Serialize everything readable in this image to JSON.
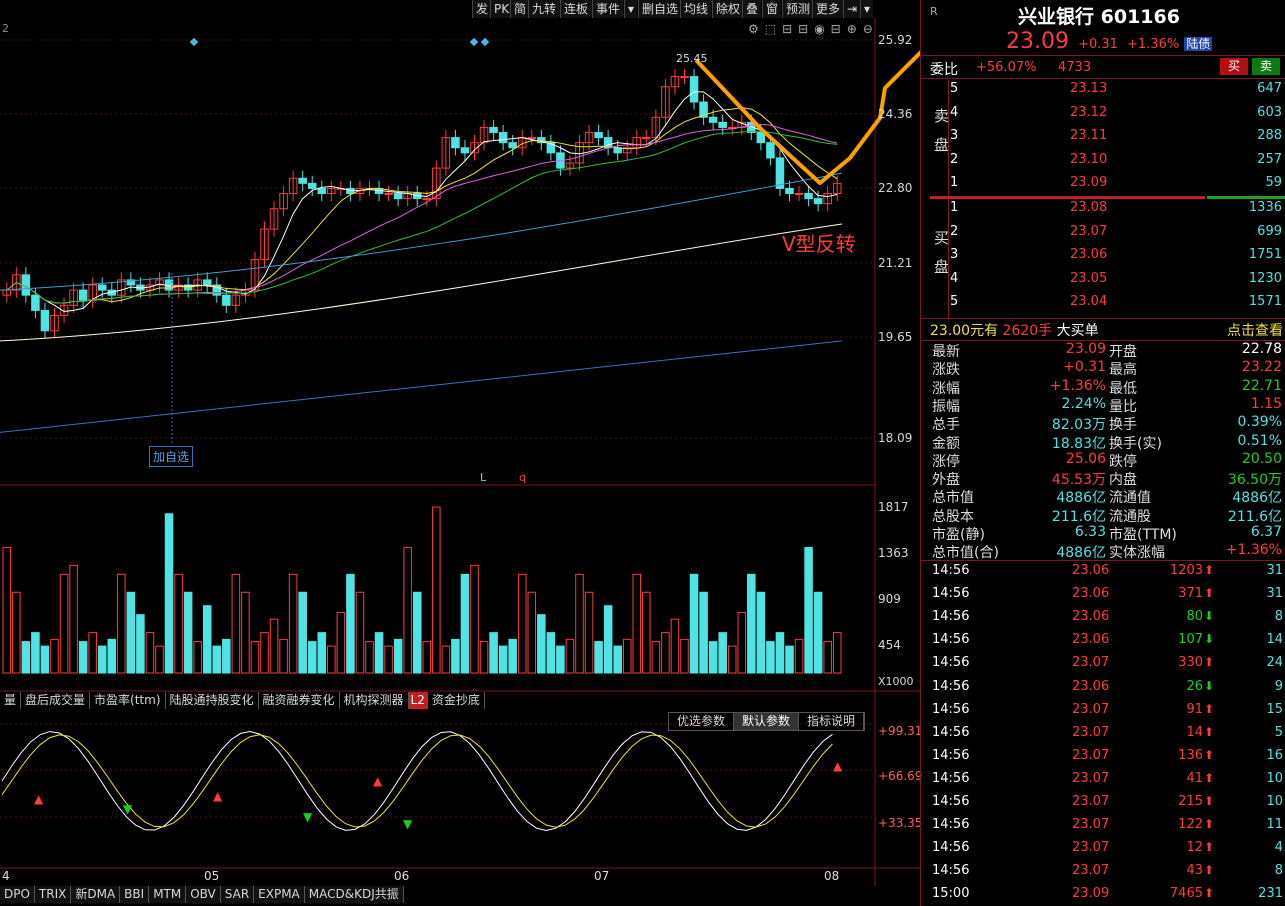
{
  "toolbar": [
    "发",
    "PK",
    "简",
    "九转",
    "连板",
    "事件",
    "▾",
    "删自选",
    "均线",
    "除权",
    "叠",
    "窗",
    "预测",
    "更多",
    "⇥",
    "▾"
  ],
  "chart": {
    "period_label": "2",
    "price_labels": [
      "25.92",
      "24.36",
      "22.80",
      "21.21",
      "19.65",
      "18.09"
    ],
    "high_marker": "25.45",
    "annotation": "V型反转",
    "add_fav": "加自选",
    "markers": [
      "L",
      "q"
    ]
  },
  "volume": {
    "labels": [
      "1817",
      "1363",
      "909",
      "454"
    ],
    "unit": "X1000"
  },
  "indicator_tabs": [
    "量",
    "盘后成交量",
    "市盈率(ttm)",
    "陆股通持股变化",
    "融资融券变化",
    "机构探测器",
    "L2",
    "资金抄底"
  ],
  "param_tabs": [
    "优选参数",
    "默认参数",
    "指标说明"
  ],
  "osc": {
    "labels": [
      "+99.31",
      "+66.69",
      "+33.35"
    ]
  },
  "months": [
    "4",
    "05",
    "06",
    "07",
    "08"
  ],
  "bottom_tabs": [
    "DPO",
    "TRIX",
    "新DMA",
    "BBI",
    "MTM",
    "OBV",
    "SAR",
    "EXPMA",
    "MACD&KDJ共振"
  ],
  "quote": {
    "name": "兴业银行",
    "code": "601166",
    "price": "23.09",
    "change": "+0.31",
    "pct": "+1.36%",
    "tag": "陆债",
    "wb_label": "委比",
    "wb_pct": "+56.07%",
    "wb_val": "4733",
    "buy": "买",
    "sell": "卖",
    "sell_side": "卖盘",
    "buy_side": "买盘",
    "asks": [
      {
        "n": "5",
        "p": "23.13",
        "v": "647"
      },
      {
        "n": "4",
        "p": "23.12",
        "v": "603"
      },
      {
        "n": "3",
        "p": "23.11",
        "v": "288"
      },
      {
        "n": "2",
        "p": "23.10",
        "v": "257"
      },
      {
        "n": "1",
        "p": "23.09",
        "v": "59"
      }
    ],
    "bids": [
      {
        "n": "1",
        "p": "23.08",
        "v": "1336"
      },
      {
        "n": "2",
        "p": "23.07",
        "v": "699"
      },
      {
        "n": "3",
        "p": "23.06",
        "v": "1751"
      },
      {
        "n": "4",
        "p": "23.05",
        "v": "1230"
      },
      {
        "n": "5",
        "p": "23.04",
        "v": "1571"
      }
    ],
    "bigorder": {
      "price": "23.00元有",
      "qty": "2620手",
      "label": "大买单",
      "link": "点击查看"
    },
    "stats": [
      [
        "最新",
        "23.09",
        "开盘",
        "22.78"
      ],
      [
        "涨跌",
        "+0.31",
        "最高",
        "23.22"
      ],
      [
        "涨幅",
        "+1.36%",
        "最低",
        "22.71"
      ],
      [
        "振幅",
        "2.24%",
        "量比",
        "1.15"
      ],
      [
        "总手",
        "82.03万",
        "换手",
        "0.39%"
      ],
      [
        "金额",
        "18.83亿",
        "换手(实)",
        "0.51%"
      ],
      [
        "涨停",
        "25.06",
        "跌停",
        "20.50"
      ],
      [
        "外盘",
        "45.53万",
        "内盘",
        "36.50万"
      ],
      [
        "总市值",
        "4886亿",
        "流通值",
        "4886亿"
      ],
      [
        "总股本",
        "211.6亿",
        "流通股",
        "211.6亿"
      ],
      [
        "市盈(静)",
        "6.33",
        "市盈(TTM)",
        "6.37"
      ],
      [
        "总市值(合)",
        "4886亿",
        "实体涨幅",
        "+1.36%"
      ]
    ],
    "ticks": [
      [
        "14:56",
        "23.06",
        "1203",
        "up",
        "31"
      ],
      [
        "14:56",
        "23.06",
        "371",
        "up",
        "31"
      ],
      [
        "14:56",
        "23.06",
        "80",
        "dn",
        "8"
      ],
      [
        "14:56",
        "23.06",
        "107",
        "dn",
        "14"
      ],
      [
        "14:56",
        "23.07",
        "330",
        "up",
        "24"
      ],
      [
        "14:56",
        "23.06",
        "26",
        "dn",
        "9"
      ],
      [
        "14:56",
        "23.07",
        "91",
        "up",
        "15"
      ],
      [
        "14:56",
        "23.07",
        "14",
        "up",
        "5"
      ],
      [
        "14:56",
        "23.07",
        "136",
        "up",
        "16"
      ],
      [
        "14:56",
        "23.07",
        "41",
        "up",
        "10"
      ],
      [
        "14:56",
        "23.07",
        "215",
        "up",
        "10"
      ],
      [
        "14:56",
        "23.07",
        "122",
        "up",
        "11"
      ],
      [
        "14:56",
        "23.07",
        "12",
        "up",
        "4"
      ],
      [
        "14:56",
        "23.07",
        "43",
        "up",
        "8"
      ],
      [
        "15:00",
        "23.09",
        "7465",
        "up",
        "231"
      ]
    ]
  },
  "colors": {
    "up": "#ff3b3b",
    "down": "#4fe3e3",
    "ma5": "#ffffff",
    "ma10": "#f0e040",
    "ma20": "#e060e0",
    "ma30": "#30c030",
    "ma60": "#3aa0d0",
    "ma120": "#ffffe0",
    "ma250": "#3a6fbf",
    "annot": "#ffa000"
  }
}
